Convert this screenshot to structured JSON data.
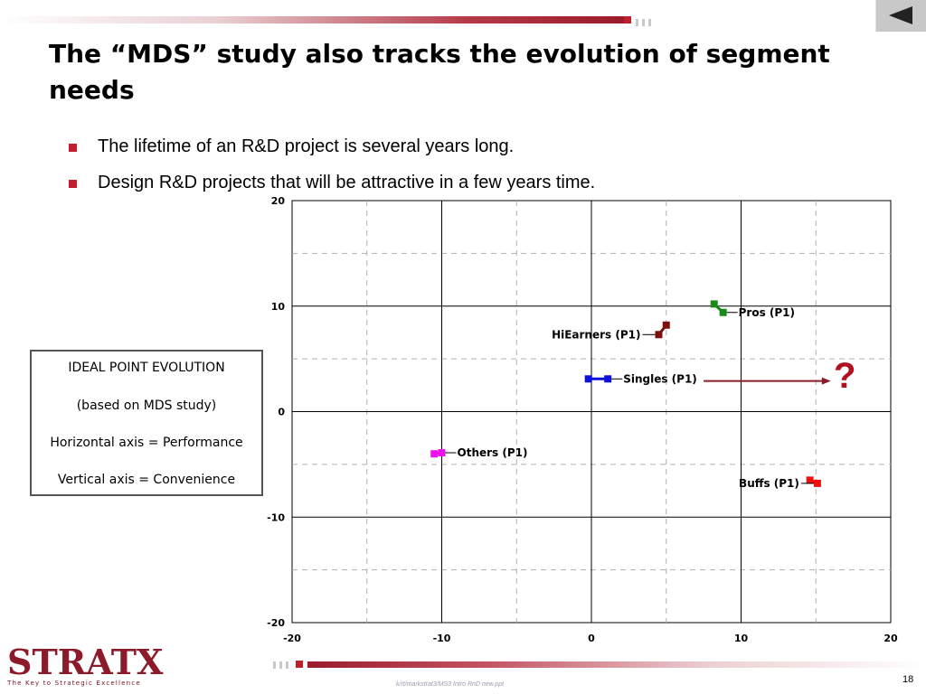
{
  "slide": {
    "title": "The “MDS” study also tracks the evolution of segment needs",
    "bullets": [
      "The lifetime of an R&D project is several years long.",
      "Design R&D projects that will be attractive in a few years time."
    ],
    "nav_button_icon": "previous-slide-icon",
    "footer_path": "k/rt/markstrat3/MS3 Intro RnD new.ppt",
    "page_number": "18",
    "logo_text": "STRATX",
    "tagline": "The Key to Strategic Excellence",
    "accent_color": "#c41e2e"
  },
  "legend": {
    "title": "IDEAL POINT EVOLUTION",
    "subtitle": "(based on MDS study)",
    "horizontal": "Horizontal axis = Performance",
    "vertical": "Vertical axis = Convenience"
  },
  "annotation": {
    "question": "?"
  },
  "chart_data": {
    "type": "scatter",
    "xlim": [
      -20,
      20
    ],
    "ylim": [
      -20,
      20
    ],
    "xticks": [
      -20,
      -10,
      0,
      10,
      20
    ],
    "yticks": [
      -20,
      -10,
      0,
      10,
      20
    ],
    "grid": true,
    "series": [
      {
        "name": "Pros (P1)",
        "color": "#1a8a1a",
        "label_side": "right",
        "points": [
          [
            8.2,
            10.2
          ],
          [
            8.8,
            9.4
          ]
        ]
      },
      {
        "name": "HiEarners (P1)",
        "color": "#7a1010",
        "label_side": "left",
        "points": [
          [
            5.0,
            8.2
          ],
          [
            4.5,
            7.3
          ]
        ]
      },
      {
        "name": "Singles (P1)",
        "color": "#1010dd",
        "label_side": "right",
        "points": [
          [
            -0.2,
            3.1
          ],
          [
            1.1,
            3.1
          ]
        ]
      },
      {
        "name": "Others (P1)",
        "color": "#ee10ee",
        "label_side": "right",
        "points": [
          [
            -10.5,
            -4.0
          ],
          [
            -10.0,
            -3.9
          ]
        ]
      },
      {
        "name": "Buffs (P1)",
        "color": "#ee1010",
        "label_side": "left",
        "points": [
          [
            14.6,
            -6.5
          ],
          [
            15.1,
            -6.8
          ]
        ]
      }
    ],
    "arrow": {
      "from": [
        7.5,
        2.9
      ],
      "to": [
        16.0,
        2.9
      ],
      "color": "#8b1a2a"
    }
  }
}
